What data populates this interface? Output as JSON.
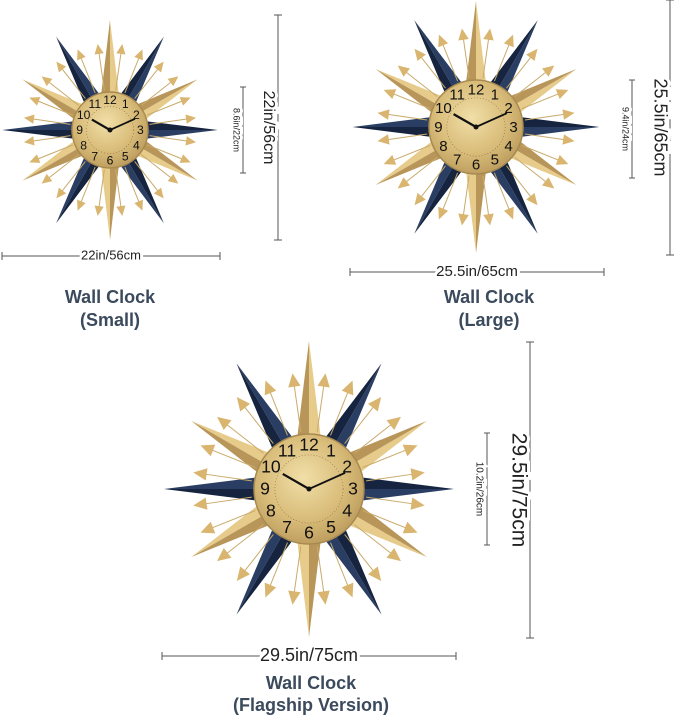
{
  "dial_numerals": [
    "12",
    "1",
    "2",
    "3",
    "4",
    "5",
    "6",
    "7",
    "8",
    "9",
    "10",
    "11"
  ],
  "clocks": [
    {
      "title": "Wall Clock",
      "subtitle": "(Small)",
      "width_label": "22in/56cm",
      "height_label": "22in/56cm",
      "face_label": "8.6in/22cm"
    },
    {
      "title": "Wall Clock",
      "subtitle": "(Large)",
      "width_label": "25.5in/65cm",
      "height_label": "25.5in/65cm",
      "face_label": "9.4in/24cm"
    },
    {
      "title": "Wall Clock",
      "subtitle": "(Flagship Version)",
      "width_label": "29.5in/75cm",
      "height_label": "29.5in/75cm",
      "face_label": "10.2in/26cm"
    }
  ]
}
